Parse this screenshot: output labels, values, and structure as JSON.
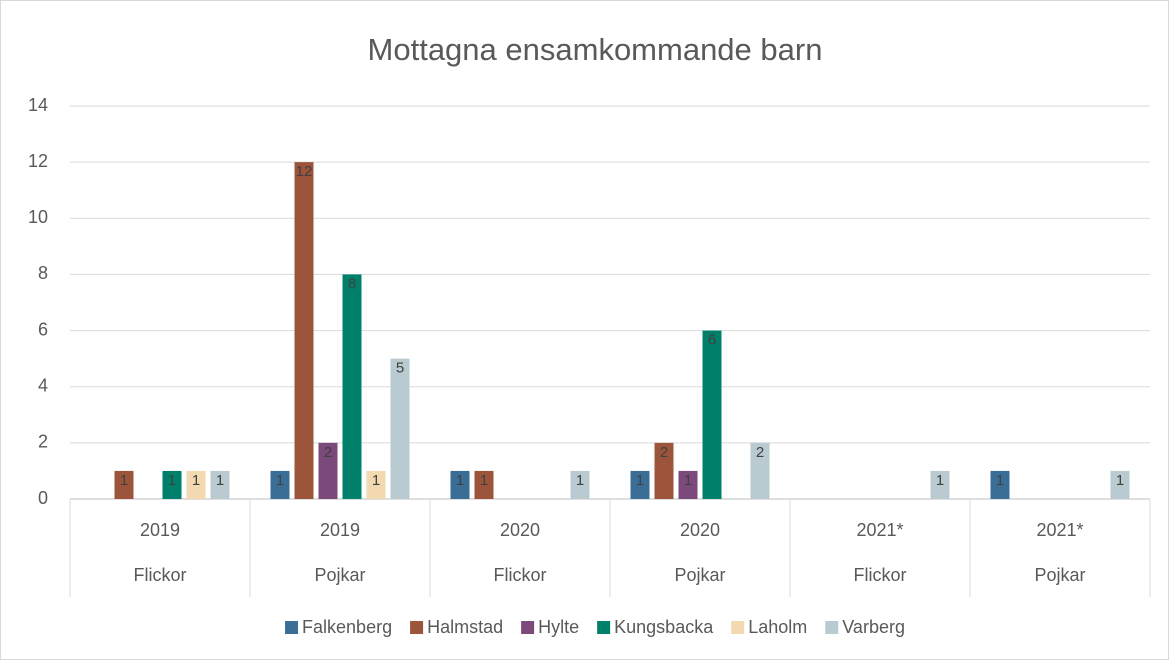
{
  "chart_data": {
    "type": "bar",
    "title": "Mottagna ensamkommande barn",
    "categories": [
      {
        "year": "2019",
        "group": "Flickor"
      },
      {
        "year": "2019",
        "group": "Pojkar"
      },
      {
        "year": "2020",
        "group": "Flickor"
      },
      {
        "year": "2020",
        "group": "Pojkar"
      },
      {
        "year": "2021*",
        "group": "Flickor"
      },
      {
        "year": "2021*",
        "group": "Pojkar"
      }
    ],
    "series": [
      {
        "name": "Falkenberg",
        "color": "#3b6e97",
        "values": [
          0,
          1,
          1,
          1,
          0,
          1
        ]
      },
      {
        "name": "Halmstad",
        "color": "#9c553a",
        "values": [
          1,
          12,
          1,
          2,
          0,
          0
        ]
      },
      {
        "name": "Hylte",
        "color": "#7b4a7b",
        "values": [
          0,
          2,
          0,
          1,
          0,
          0
        ]
      },
      {
        "name": "Kungsbacka",
        "color": "#00806a",
        "values": [
          1,
          8,
          0,
          6,
          0,
          0
        ]
      },
      {
        "name": "Laholm",
        "color": "#f2d9b0",
        "values": [
          1,
          1,
          0,
          0,
          0,
          0
        ]
      },
      {
        "name": "Varberg",
        "color": "#b9cad0",
        "values": [
          1,
          5,
          1,
          2,
          1,
          1
        ]
      }
    ],
    "ylim": [
      0,
      14
    ],
    "yticks": [
      0,
      2,
      4,
      6,
      8,
      10,
      12,
      14
    ],
    "grid": true,
    "legend": "bottom"
  }
}
